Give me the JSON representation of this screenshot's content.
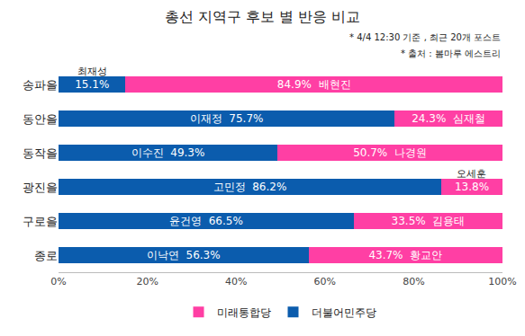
{
  "chart_data": {
    "type": "bar",
    "orientation": "horizontal",
    "stacked": true,
    "title": "총선 지역구 후보 별 반응 비교",
    "annotations": [
      "* 4/4 12:30 기준 , 최근 20개 포스트",
      "* 출처 : 봄마루 에스트리"
    ],
    "categories": [
      "송파을",
      "동안을",
      "동작을",
      "광진을",
      "구로을",
      "종로"
    ],
    "series": [
      {
        "name": "더불어민주당",
        "color": "#0b5cad",
        "values": [
          15.1,
          75.7,
          49.3,
          86.2,
          66.5,
          56.3
        ],
        "value_labels": [
          "15.1%",
          "75.7%",
          "49.3%",
          "86.2%",
          "66.5%",
          "56.3%"
        ],
        "candidates": [
          "최재성",
          "이재정",
          "이수진",
          "고민정",
          "윤건영",
          "이낙연"
        ]
      },
      {
        "name": "미래통합당",
        "color": "#ff3fa4",
        "values": [
          84.9,
          24.3,
          50.7,
          13.8,
          33.5,
          43.7
        ],
        "value_labels": [
          "84.9%",
          "24.3%",
          "50.7%",
          "13.8%",
          "33.5%",
          "43.7%"
        ],
        "candidates": [
          "배현진",
          "심재철",
          "나경원",
          "오세훈",
          "김용태",
          "황교안"
        ]
      }
    ],
    "xlim": [
      0,
      100
    ],
    "xticks": [
      {
        "value": 0,
        "label": "0%"
      },
      {
        "value": 20,
        "label": "20%"
      },
      {
        "value": 40,
        "label": "40%"
      },
      {
        "value": 60,
        "label": "60%"
      },
      {
        "value": 80,
        "label": "80%"
      },
      {
        "value": 100,
        "label": "100%"
      }
    ],
    "data_labels": true,
    "grid": false,
    "legend": "bottom"
  }
}
